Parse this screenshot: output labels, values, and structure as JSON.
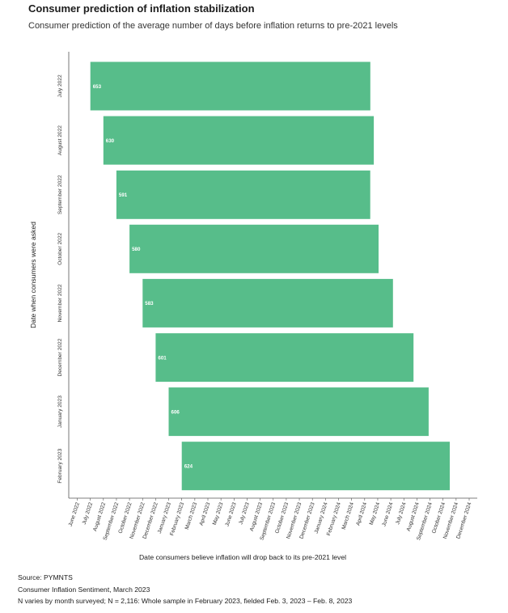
{
  "title": "Consumer prediction of inflation stabilization",
  "subtitle": "Consumer prediction of the average number of days before inflation returns to pre-2021 levels",
  "notes": {
    "source": "Source: PYMNTS",
    "report": "Consumer Inflation Sentiment, March 2023",
    "sample": "N varies by month surveyed; N = 2,116: Whole sample in February 2023, fielded Feb. 3, 2023 – Feb. 8, 2023"
  },
  "colors": {
    "bar": "#57bd8a",
    "axis": "#555555"
  },
  "chart_data": {
    "type": "bar",
    "orientation": "horizontal-range",
    "xlabel": "Date consumers believe inflation will drop back to its pre-2021 level",
    "ylabel": "Date when consumers were asked",
    "x_ticks": [
      "June 2022",
      "July 2022",
      "August 2022",
      "September 2022",
      "October 2022",
      "November 2022",
      "December 2022",
      "January 2023",
      "February 2023",
      "March 2023",
      "April 2023",
      "May 2023",
      "June 2023",
      "July 2023",
      "August 2023",
      "September 2023",
      "October 2023",
      "November 2023",
      "December 2023",
      "January 2024",
      "February 2024",
      "March 2024",
      "April 2024",
      "May 2024",
      "June 2024",
      "July 2024",
      "August 2024",
      "September 2024",
      "October 2024",
      "November 2024",
      "December 2024"
    ],
    "categories": [
      "July 2022",
      "August 2022",
      "September 2022",
      "October 2022",
      "November 2022",
      "December 2022",
      "January 2023",
      "February 2023"
    ],
    "starts": [
      "2022-07-01",
      "2022-08-01",
      "2022-09-01",
      "2022-10-01",
      "2022-11-01",
      "2022-12-01",
      "2023-01-01",
      "2023-02-01"
    ],
    "values": [
      653,
      630,
      591,
      580,
      583,
      601,
      606,
      624
    ],
    "value_unit": "days"
  }
}
